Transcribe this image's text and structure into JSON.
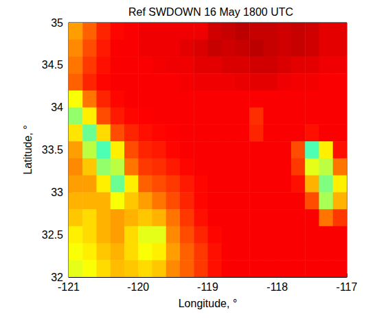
{
  "chart_data": {
    "type": "heatmap",
    "title": "Ref SWDOWN 16 May 1800 UTC",
    "xlabel": "Longitude, °",
    "ylabel": "Latitude, °",
    "xlim": [
      -121,
      -117
    ],
    "ylim": [
      32,
      35
    ],
    "xticks": [
      -121,
      -120,
      -119,
      -118,
      -117
    ],
    "yticks": [
      32,
      32.5,
      33,
      33.5,
      34,
      34.5,
      35
    ],
    "grid": false,
    "zlim": [
      0,
      1000
    ],
    "x": [
      -120.9,
      -120.7,
      -120.5,
      -120.3,
      -120.1,
      -119.9,
      -119.7,
      -119.5,
      -119.3,
      -119.1,
      -118.9,
      -118.7,
      -118.5,
      -118.3,
      -118.1,
      -117.9,
      -117.7,
      -117.5,
      -117.3,
      -117.1
    ],
    "y": [
      34.9,
      34.7,
      34.5,
      34.3,
      34.1,
      33.9,
      33.7,
      33.5,
      33.3,
      33.1,
      32.9,
      32.7,
      32.5,
      32.3,
      32.1
    ],
    "z": [
      [
        720,
        780,
        840,
        870,
        880,
        890,
        890,
        890,
        890,
        890,
        920,
        930,
        940,
        930,
        930,
        920,
        930,
        920,
        900,
        900
      ],
      [
        740,
        800,
        850,
        880,
        880,
        890,
        890,
        890,
        900,
        910,
        930,
        920,
        930,
        940,
        930,
        920,
        930,
        920,
        900,
        900
      ],
      [
        760,
        820,
        860,
        880,
        880,
        880,
        885,
        890,
        890,
        900,
        900,
        910,
        910,
        920,
        920,
        910,
        900,
        900,
        890,
        890
      ],
      [
        780,
        840,
        870,
        880,
        880,
        880,
        880,
        880,
        885,
        890,
        890,
        890,
        895,
        900,
        900,
        890,
        885,
        885,
        880,
        880
      ],
      [
        620,
        760,
        840,
        870,
        880,
        880,
        880,
        880,
        880,
        880,
        880,
        880,
        880,
        880,
        880,
        880,
        880,
        880,
        880,
        880
      ],
      [
        520,
        640,
        800,
        850,
        870,
        875,
        880,
        880,
        880,
        880,
        880,
        880,
        880,
        830,
        880,
        880,
        880,
        880,
        880,
        880
      ],
      [
        650,
        480,
        660,
        800,
        840,
        860,
        870,
        875,
        880,
        880,
        880,
        880,
        880,
        840,
        880,
        880,
        880,
        860,
        880,
        880
      ],
      [
        720,
        560,
        450,
        640,
        800,
        840,
        850,
        870,
        880,
        880,
        880,
        880,
        880,
        880,
        880,
        880,
        800,
        450,
        640,
        860
      ],
      [
        740,
        680,
        520,
        560,
        760,
        820,
        830,
        850,
        870,
        880,
        880,
        880,
        880,
        880,
        880,
        880,
        820,
        600,
        560,
        760
      ],
      [
        720,
        720,
        640,
        480,
        640,
        780,
        800,
        820,
        850,
        870,
        880,
        880,
        880,
        880,
        880,
        880,
        860,
        700,
        500,
        640
      ],
      [
        700,
        700,
        700,
        620,
        680,
        720,
        760,
        800,
        840,
        870,
        880,
        880,
        880,
        880,
        880,
        880,
        880,
        800,
        540,
        700
      ],
      [
        680,
        660,
        700,
        720,
        700,
        680,
        700,
        760,
        820,
        860,
        880,
        880,
        880,
        880,
        880,
        880,
        880,
        880,
        760,
        820
      ],
      [
        640,
        660,
        700,
        720,
        660,
        600,
        600,
        740,
        800,
        840,
        870,
        880,
        880,
        880,
        880,
        880,
        880,
        880,
        880,
        880
      ],
      [
        620,
        640,
        680,
        700,
        660,
        620,
        640,
        720,
        780,
        820,
        860,
        880,
        880,
        880,
        880,
        880,
        880,
        880,
        880,
        880
      ],
      [
        600,
        620,
        660,
        690,
        680,
        660,
        680,
        740,
        780,
        820,
        860,
        880,
        880,
        880,
        880,
        880,
        880,
        880,
        880,
        880
      ]
    ]
  }
}
